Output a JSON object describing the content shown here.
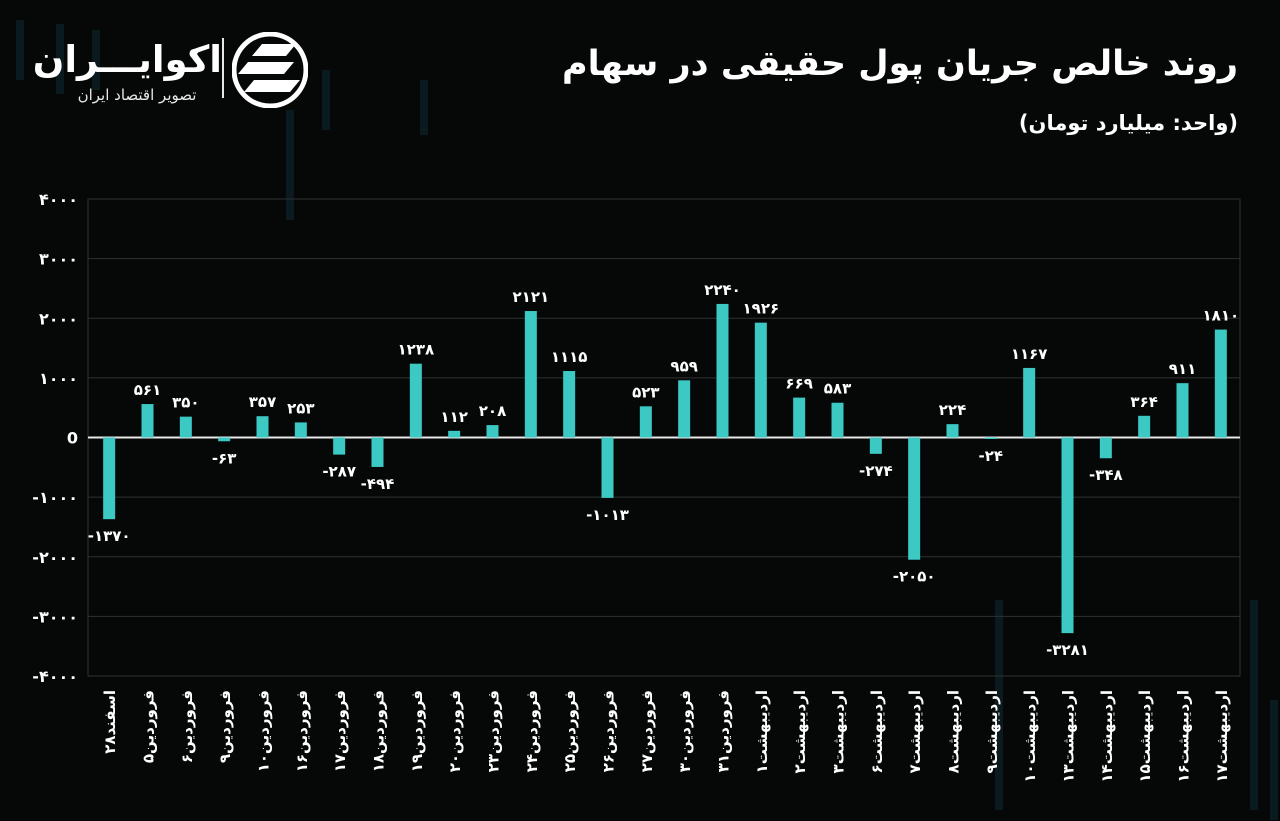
{
  "title": "روند خالص جریان پول حقیقی در سهام",
  "unit_label": "(واحد: میلیارد تومان)",
  "brand": {
    "name": "اکوایـــران",
    "subtitle": "تصویر اقتصاد ایران"
  },
  "colors": {
    "bar": "#3cc9c4",
    "background": "#060707",
    "grid": "#2e3233",
    "text": "#ffffff"
  },
  "chart_data": {
    "type": "bar",
    "categories": [
      "اسفند۲۸",
      "فروردین۵",
      "فروردین۶",
      "فروردین۹",
      "فروردین۱۰",
      "فروردین۱۶",
      "فروردین۱۷",
      "فروردین۱۸",
      "فروردین۱۹",
      "فروردین۲۰",
      "فروردین۲۳",
      "فروردین۲۴",
      "فروردین۲۵",
      "فروردین۲۶",
      "فروردین۲۷",
      "فروردین۳۰",
      "فروردین۳۱",
      "اردیبهشت۱",
      "اردیبهشت۲",
      "اردیبهشت۳",
      "اردیبهشت۶",
      "اردیبهشت۷",
      "اردیبهشت۸",
      "اردیبهشت۹",
      "اردیبهشت۱۰",
      "اردیبهشت۱۳",
      "اردیبهشت۱۴",
      "اردیبهشت۱۵",
      "اردیبهشت۱۶",
      "اردیبهشت۱۷"
    ],
    "values": [
      -1370,
      561,
      350,
      -63,
      357,
      253,
      -287,
      -494,
      1238,
      112,
      208,
      2121,
      1115,
      -1013,
      523,
      959,
      2240,
      1926,
      669,
      583,
      -274,
      -2050,
      224,
      -24,
      1167,
      -3281,
      -348,
      364,
      911,
      1810
    ],
    "value_labels": [
      "-۱۳۷۰",
      "۵۶۱",
      "۳۵۰",
      "-۶۳",
      "۳۵۷",
      "۲۵۳",
      "-۲۸۷",
      "-۴۹۴",
      "۱۲۳۸",
      "۱۱۲",
      "۲۰۸",
      "۲۱۲۱",
      "۱۱۱۵",
      "-۱۰۱۳",
      "۵۲۳",
      "۹۵۹",
      "۲۲۴۰",
      "۱۹۲۶",
      "۶۶۹",
      "۵۸۳",
      "-۲۷۴",
      "-۲۰۵۰",
      "۲۲۴",
      "-۲۴",
      "۱۱۶۷",
      "-۳۲۸۱",
      "-۳۴۸",
      "۳۶۴",
      "۹۱۱",
      "۱۸۱۰"
    ],
    "yticks": [
      4000,
      3000,
      2000,
      1000,
      0,
      -1000,
      -2000,
      -3000,
      -4000
    ],
    "ytick_labels": [
      "۴۰۰۰",
      "۳۰۰۰",
      "۲۰۰۰",
      "۱۰۰۰",
      "0",
      "-۱۰۰۰",
      "-۲۰۰۰",
      "-۳۰۰۰",
      "-۴۰۰۰"
    ],
    "ylim": [
      -4000,
      4000
    ],
    "grid": true,
    "legend": "none"
  }
}
